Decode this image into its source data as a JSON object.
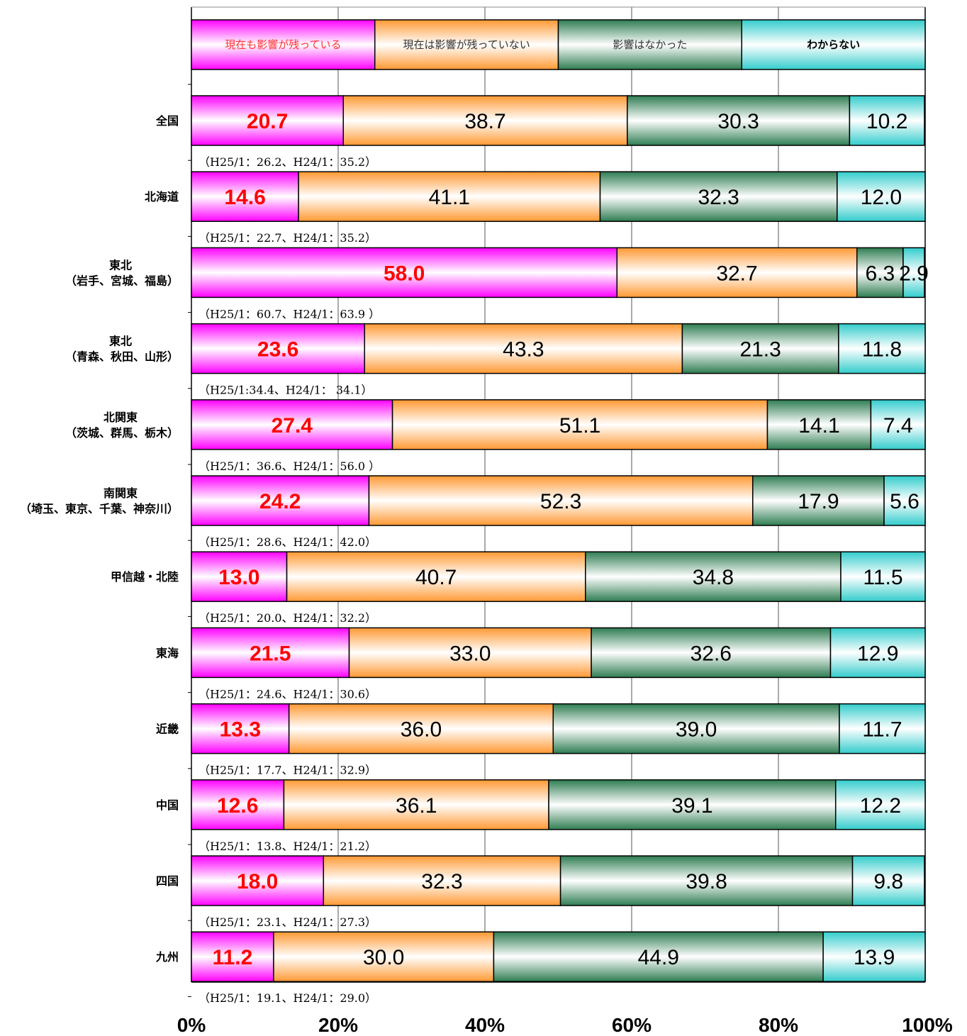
{
  "chart_data": {
    "type": "bar",
    "orientation": "horizontal",
    "stacked": "percent",
    "categories": [
      [
        "全国"
      ],
      [
        "北海道"
      ],
      [
        "東北",
        "（岩手、宮城、福島）"
      ],
      [
        "東北",
        "（青森、秋田、山形）"
      ],
      [
        "北関東",
        "（茨城、群馬、栃木）"
      ],
      [
        "南関東",
        "（埼玉、東京、千葉、神奈川）"
      ],
      [
        "甲信越・北陸"
      ],
      [
        "東海"
      ],
      [
        "近畿"
      ],
      [
        "中国"
      ],
      [
        "四国"
      ],
      [
        "九州"
      ]
    ],
    "series": [
      {
        "name": "現在も影響が残っている",
        "color": "#ff00ff",
        "label_color": "#ff0000",
        "values": [
          20.7,
          14.6,
          58.0,
          23.6,
          27.4,
          24.2,
          13.0,
          21.5,
          13.3,
          12.6,
          18.0,
          11.2
        ]
      },
      {
        "name": "現在は影響が残っていない",
        "color": "#ff9933",
        "label_color": "#333333",
        "values": [
          38.7,
          41.1,
          32.7,
          43.3,
          51.1,
          52.3,
          40.7,
          33.0,
          36.0,
          36.1,
          32.3,
          30.0
        ]
      },
      {
        "name": "影響はなかった",
        "color": "#2e7d52",
        "label_color": "#333333",
        "values": [
          30.3,
          32.3,
          6.3,
          21.3,
          14.1,
          17.9,
          34.8,
          32.6,
          39.0,
          39.1,
          39.8,
          44.9
        ]
      },
      {
        "name": "わからない",
        "color": "#33cccc",
        "label_color": "#000000",
        "values": [
          10.2,
          12.0,
          2.9,
          11.8,
          7.4,
          5.6,
          11.5,
          12.9,
          11.7,
          12.2,
          9.8,
          13.9
        ]
      }
    ],
    "value_labels": [
      [
        "20.7",
        "38.7",
        "30.3",
        "10.2"
      ],
      [
        "14.6",
        "41.1",
        "32.3",
        "12.0"
      ],
      [
        "58.0",
        "32.7",
        "6.3",
        "2.9"
      ],
      [
        "23.6",
        "43.3",
        "21.3",
        "11.8"
      ],
      [
        "27.4",
        "51.1",
        "14.1",
        "7.4"
      ],
      [
        "24.2",
        "52.3",
        "17.9",
        "5.6"
      ],
      [
        "13.0",
        "40.7",
        "34.8",
        "11.5"
      ],
      [
        "21.5",
        "33.0",
        "32.6",
        "12.9"
      ],
      [
        "13.3",
        "36.0",
        "39.0",
        "11.7"
      ],
      [
        "12.6",
        "36.1",
        "39.1",
        "12.2"
      ],
      [
        "18.0",
        "32.3",
        "39.8",
        "9.8"
      ],
      [
        "11.2",
        "30.0",
        "44.9",
        "13.9"
      ]
    ],
    "notes": [
      "（H25/1：26.2、H24/1：35.2）",
      "（H25/1：22.7、H24/1：35.2）",
      "（H25/1：60.7、H24/1：63.9 ）",
      "（H25/1:34.4、H24/1： 34.1）",
      "（H25/1：36.6、H24/1：56.0 ）",
      "（H25/1：28.6、H24/1：42.0）",
      "（H25/1：20.0、H24/1：32.2）",
      "（H25/1：24.6、H24/1：30.6）",
      "（H25/1：17.7、H24/1：32.9）",
      "（H25/1：13.8、H24/1：21.2）",
      "（H25/1：23.1、H24/1：27.3）",
      "（H25/1：19.1、H24/1：29.0）"
    ],
    "x_ticks": [
      "0%",
      "20%",
      "40%",
      "60%",
      "80%",
      "100%"
    ],
    "xlim": [
      0,
      100
    ],
    "grid": "vertical",
    "legend_position": "top",
    "title": "",
    "xlabel": "",
    "ylabel": ""
  }
}
